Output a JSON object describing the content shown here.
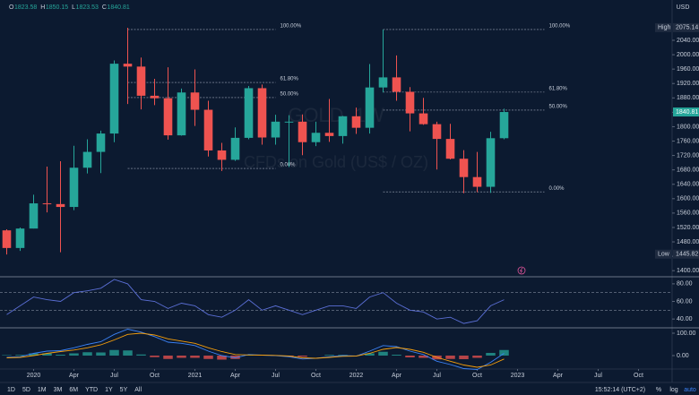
{
  "chart_data": [
    {
      "type": "candlestick",
      "header": [
        {
          "label": "O",
          "value": 1823.58
        },
        {
          "label": "H",
          "value": 1850.15
        },
        {
          "label": "L",
          "value": 1823.53
        },
        {
          "label": "C",
          "value": 1840.81
        }
      ],
      "watermark": "GOLD, 1W",
      "subtitle": "CFDs on Gold (US$ / OZ)",
      "currency": "USD",
      "x": [
        "2019-11",
        "2019-12",
        "2020-01",
        "2020-02",
        "2020-03",
        "2020-04",
        "2020-05",
        "2020-06",
        "2020-07",
        "2020-08",
        "2020-09",
        "2020-10",
        "2020-11",
        "2020-12",
        "2021-01",
        "2021-02",
        "2021-03",
        "2021-04",
        "2021-05",
        "2021-06",
        "2021-07",
        "2021-08",
        "2021-09",
        "2021-10",
        "2021-11",
        "2021-12",
        "2022-01",
        "2022-02",
        "2022-03",
        "2022-04",
        "2022-05",
        "2022-06",
        "2022-07",
        "2022-08",
        "2022-09",
        "2022-10",
        "2022-11",
        "2022-12"
      ],
      "open": [
        1512,
        1463,
        1517,
        1587,
        1585,
        1577,
        1686,
        1730,
        1781,
        1975,
        1967,
        1886,
        1879,
        1776,
        1895,
        1847,
        1734,
        1708,
        1769,
        1907,
        1770,
        1814,
        1814,
        1757,
        1783,
        1774,
        1829,
        1797,
        1909,
        1937,
        1897,
        1837,
        1807,
        1766,
        1711,
        1660,
        1633,
        1768
      ],
      "high": [
        1515,
        1520,
        1611,
        1689,
        1704,
        1747,
        1765,
        1789,
        1984,
        2075,
        1992,
        1933,
        1965,
        1906,
        1959,
        1872,
        1755,
        1798,
        1913,
        1917,
        1833,
        1832,
        1834,
        1814,
        1877,
        1830,
        1853,
        1974,
        2070,
        1998,
        1910,
        1880,
        1814,
        1808,
        1735,
        1730,
        1786,
        1850
      ],
      "low": [
        1445,
        1455,
        1517,
        1562,
        1451,
        1568,
        1670,
        1671,
        1757,
        1863,
        1848,
        1860,
        1764,
        1775,
        1802,
        1717,
        1677,
        1705,
        1765,
        1750,
        1750,
        1688,
        1721,
        1746,
        1758,
        1753,
        1780,
        1781,
        1895,
        1872,
        1787,
        1805,
        1681,
        1709,
        1615,
        1618,
        1616,
        1765
      ],
      "close": [
        1463,
        1517,
        1587,
        1585,
        1577,
        1686,
        1730,
        1781,
        1975,
        1967,
        1886,
        1879,
        1776,
        1895,
        1847,
        1734,
        1708,
        1769,
        1907,
        1770,
        1814,
        1814,
        1757,
        1783,
        1774,
        1829,
        1797,
        1909,
        1937,
        1897,
        1837,
        1807,
        1766,
        1711,
        1660,
        1633,
        1768,
        1840.81
      ],
      "up_color": "#26a69a",
      "down_color": "#ef5350",
      "xlim": [
        "2019-11",
        "2023-12"
      ],
      "xticks": [
        {
          "value": "2020-01",
          "label": "2020"
        },
        {
          "value": "2020-04",
          "label": "Apr"
        },
        {
          "value": "2020-07",
          "label": "Jul"
        },
        {
          "value": "2020-10",
          "label": "Oct"
        },
        {
          "value": "2021-01",
          "label": "2021"
        },
        {
          "value": "2021-04",
          "label": "Apr"
        },
        {
          "value": "2021-07",
          "label": "Jul"
        },
        {
          "value": "2021-10",
          "label": "Oct"
        },
        {
          "value": "2022-01",
          "label": "2022"
        },
        {
          "value": "2022-04",
          "label": "Apr"
        },
        {
          "value": "2022-07",
          "label": "Jul"
        },
        {
          "value": "2022-10",
          "label": "Oct"
        },
        {
          "value": "2023-01",
          "label": "2023"
        },
        {
          "value": "2023-04",
          "label": "Apr"
        },
        {
          "value": "2023-07",
          "label": "Jul"
        },
        {
          "value": "2023-10",
          "label": "Oct"
        }
      ],
      "ylim": [
        1388,
        2152
      ],
      "yticks": [
        {
          "value": 1400,
          "label": "1400.00"
        },
        {
          "value": 1440,
          "label": "1440.00"
        },
        {
          "value": 1480,
          "label": "1480.00"
        },
        {
          "value": 1520,
          "label": "1520.00"
        },
        {
          "value": 1560,
          "label": "1560.00"
        },
        {
          "value": 1600,
          "label": "1600.00"
        },
        {
          "value": 1640,
          "label": "1640.00"
        },
        {
          "value": 1680,
          "label": "1680.00"
        },
        {
          "value": 1720,
          "label": "1720.00"
        },
        {
          "value": 1760,
          "label": "1760.00"
        },
        {
          "value": 1800,
          "label": "1800.00"
        },
        {
          "value": 1840,
          "label": "1840.00"
        },
        {
          "value": 1880,
          "label": "1880.00"
        },
        {
          "value": 1920,
          "label": "1920.00"
        },
        {
          "value": 1960,
          "label": "1960.00"
        },
        {
          "value": 2000,
          "label": "2000.00"
        },
        {
          "value": 2040,
          "label": "2040.00"
        }
      ],
      "price_labels": [
        {
          "name": "High",
          "value": 2075.14
        },
        {
          "name": "Low",
          "value": 1445.82
        }
      ],
      "last_price": 1840.81,
      "fibonacci": [
        {
          "x": [
            "2020-08",
            "2021-07"
          ],
          "levels": [
            {
              "price": 2070,
              "label": "100.00%"
            },
            {
              "price": 1923,
              "label": "61.80%"
            },
            {
              "price": 1881,
              "label": "50.00%"
            },
            {
              "price": 1684,
              "label": "0.00%"
            }
          ]
        },
        {
          "x": [
            "2022-03",
            "2023-03"
          ],
          "levels": [
            {
              "price": 2070,
              "label": "100.00%"
            },
            {
              "price": 1896,
              "label": "61.80%"
            },
            {
              "price": 1846,
              "label": "50.00%"
            },
            {
              "price": 1619,
              "label": "0.00%"
            }
          ]
        }
      ]
    },
    {
      "type": "line",
      "series": [
        {
          "name": "RSI",
          "color": "#5b6fd6",
          "values": [
            45,
            55,
            65,
            62,
            60,
            70,
            72,
            75,
            85,
            80,
            62,
            60,
            52,
            58,
            55,
            45,
            42,
            50,
            62,
            50,
            55,
            50,
            45,
            50,
            55,
            55,
            52,
            65,
            70,
            58,
            50,
            48,
            40,
            42,
            35,
            38,
            55,
            62
          ]
        }
      ],
      "levels": [
        70,
        50
      ],
      "ylim": [
        31,
        86
      ],
      "yticks": [
        {
          "value": 80,
          "label": "80.00"
        },
        {
          "value": 60,
          "label": "60.00"
        },
        {
          "value": 40,
          "label": "40.00"
        }
      ]
    },
    {
      "type": "macd",
      "series": [
        {
          "name": "MACD",
          "color": "#3b82f6",
          "values": [
            -8,
            -5,
            10,
            20,
            22,
            35,
            50,
            62,
            95,
            118,
            105,
            85,
            60,
            55,
            45,
            20,
            0,
            -10,
            5,
            2,
            0,
            -5,
            -15,
            -12,
            -5,
            0,
            -2,
            20,
            45,
            40,
            20,
            5,
            -25,
            -40,
            -58,
            -62,
            -30,
            10
          ]
        },
        {
          "name": "Signal",
          "color": "#f59e0b",
          "values": [
            -10,
            -8,
            0,
            10,
            18,
            25,
            35,
            48,
            70,
            95,
            100,
            92,
            75,
            65,
            55,
            35,
            18,
            5,
            3,
            2,
            1,
            -2,
            -10,
            -12,
            -8,
            -3,
            -2,
            10,
            28,
            36,
            28,
            15,
            -8,
            -25,
            -42,
            -52,
            -42,
            -15
          ]
        }
      ],
      "histogram": [
        2,
        3,
        10,
        10,
        4,
        10,
        15,
        14,
        25,
        23,
        5,
        -7,
        -15,
        -10,
        -10,
        -15,
        -18,
        -15,
        2,
        0,
        -1,
        -3,
        -5,
        0,
        3,
        3,
        0,
        10,
        17,
        4,
        -8,
        -10,
        -17,
        -15,
        -16,
        -10,
        12,
        25
      ],
      "ylim": [
        -56,
        116
      ],
      "yticks": [
        {
          "value": 100,
          "label": "100.00"
        },
        {
          "value": 0,
          "label": "0.00"
        }
      ]
    },
    {
      "type": "toolbar",
      "ranges": [
        "1D",
        "5D",
        "1M",
        "3M",
        "6M",
        "YTD",
        "1Y",
        "5Y",
        "All"
      ],
      "time": "15:52:14 (UTC+2)",
      "options": [
        "%",
        "log",
        "auto"
      ]
    }
  ]
}
